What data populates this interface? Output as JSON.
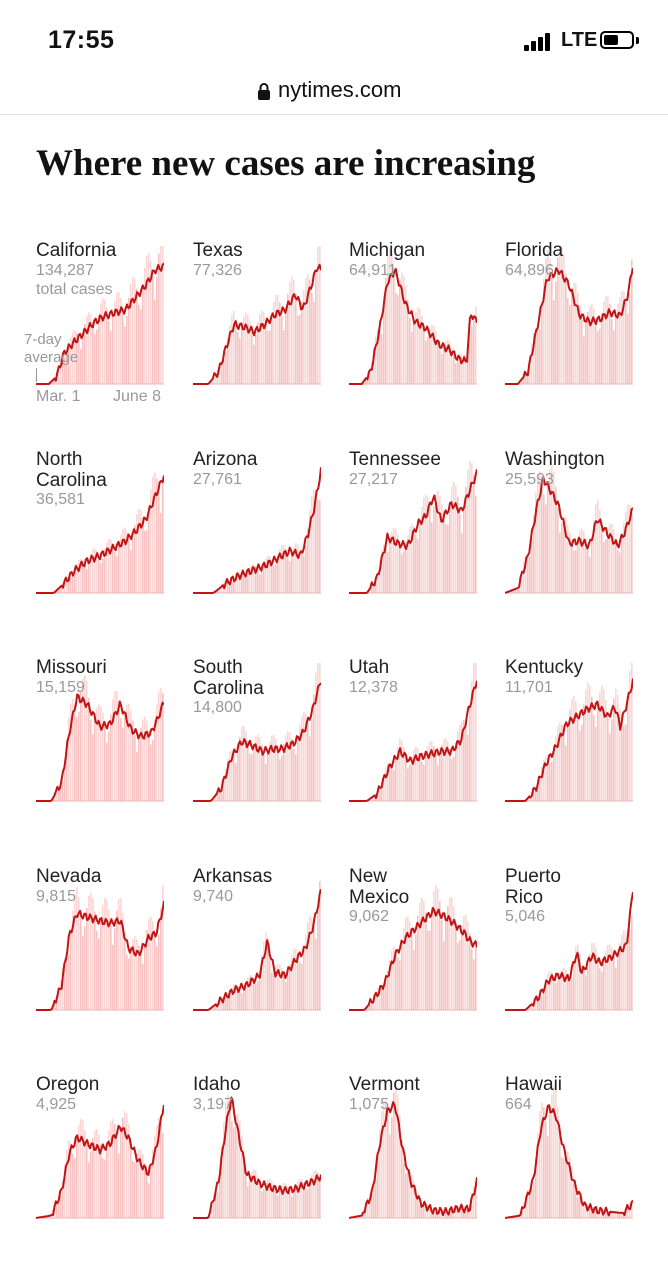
{
  "status_bar": {
    "time": "17:55",
    "network": "LTE"
  },
  "browser": {
    "url": "nytimes.com"
  },
  "headline": "Where new cases are increasing",
  "legend": {
    "total_label": "total cases",
    "avg_label_line1": "7-day",
    "avg_label_line2": "average",
    "date_start": "Mar. 1",
    "date_end": "June 8"
  },
  "colors": {
    "line": "#c21414",
    "bars": "#f8c2c2",
    "bar_spikes": "#fbd7d7"
  },
  "chart_data": {
    "type": "area",
    "title": "Where new cases are increasing",
    "x_range": [
      "Mar. 1",
      "June 8"
    ],
    "series_description": "daily new cases (bars) with 7-day average (line), each state scaled to its own peak",
    "states": [
      {
        "name": "California",
        "cases": "134,287",
        "trend": [
          [
            0,
            0.0
          ],
          [
            0.1,
            0.0
          ],
          [
            0.16,
            0.06
          ],
          [
            0.22,
            0.25
          ],
          [
            0.28,
            0.32
          ],
          [
            0.36,
            0.4
          ],
          [
            0.46,
            0.5
          ],
          [
            0.52,
            0.54
          ],
          [
            0.6,
            0.57
          ],
          [
            0.7,
            0.6
          ],
          [
            0.78,
            0.7
          ],
          [
            0.86,
            0.8
          ],
          [
            0.93,
            0.92
          ],
          [
            1,
            0.95
          ]
        ]
      },
      {
        "name": "Texas",
        "cases": "77,326",
        "trend": [
          [
            0,
            0.0
          ],
          [
            0.12,
            0.0
          ],
          [
            0.2,
            0.1
          ],
          [
            0.26,
            0.3
          ],
          [
            0.32,
            0.48
          ],
          [
            0.4,
            0.46
          ],
          [
            0.48,
            0.42
          ],
          [
            0.56,
            0.48
          ],
          [
            0.64,
            0.56
          ],
          [
            0.72,
            0.6
          ],
          [
            0.8,
            0.72
          ],
          [
            0.86,
            0.6
          ],
          [
            0.92,
            0.78
          ],
          [
            0.97,
            0.95
          ],
          [
            1,
            0.92
          ]
        ]
      },
      {
        "name": "Michigan",
        "cases": "64,911",
        "trend": [
          [
            0,
            0.0
          ],
          [
            0.1,
            0.0
          ],
          [
            0.17,
            0.1
          ],
          [
            0.24,
            0.45
          ],
          [
            0.3,
            0.82
          ],
          [
            0.36,
            0.92
          ],
          [
            0.44,
            0.65
          ],
          [
            0.52,
            0.5
          ],
          [
            0.6,
            0.45
          ],
          [
            0.7,
            0.32
          ],
          [
            0.78,
            0.28
          ],
          [
            0.86,
            0.2
          ],
          [
            0.92,
            0.18
          ],
          [
            0.95,
            0.58
          ],
          [
            0.98,
            0.52
          ]
        ]
      },
      {
        "name": "Florida",
        "cases": "64,896",
        "trend": [
          [
            0,
            0.0
          ],
          [
            0.1,
            0.0
          ],
          [
            0.18,
            0.1
          ],
          [
            0.26,
            0.5
          ],
          [
            0.33,
            0.85
          ],
          [
            0.42,
            0.92
          ],
          [
            0.5,
            0.8
          ],
          [
            0.58,
            0.56
          ],
          [
            0.66,
            0.5
          ],
          [
            0.74,
            0.52
          ],
          [
            0.82,
            0.58
          ],
          [
            0.9,
            0.55
          ],
          [
            0.96,
            0.72
          ],
          [
            1,
            0.96
          ]
        ]
      },
      {
        "name": "North Carolina",
        "cases": "36,581",
        "trend": [
          [
            0,
            0.0
          ],
          [
            0.14,
            0.0
          ],
          [
            0.22,
            0.08
          ],
          [
            0.3,
            0.18
          ],
          [
            0.4,
            0.26
          ],
          [
            0.5,
            0.3
          ],
          [
            0.6,
            0.36
          ],
          [
            0.7,
            0.42
          ],
          [
            0.78,
            0.5
          ],
          [
            0.86,
            0.6
          ],
          [
            0.92,
            0.75
          ],
          [
            1,
            0.95
          ]
        ]
      },
      {
        "name": "Arizona",
        "cases": "27,761",
        "trend": [
          [
            0,
            0.0
          ],
          [
            0.16,
            0.0
          ],
          [
            0.26,
            0.08
          ],
          [
            0.36,
            0.14
          ],
          [
            0.46,
            0.18
          ],
          [
            0.56,
            0.22
          ],
          [
            0.66,
            0.28
          ],
          [
            0.76,
            0.34
          ],
          [
            0.84,
            0.3
          ],
          [
            0.9,
            0.48
          ],
          [
            0.95,
            0.7
          ],
          [
            1,
            0.99
          ]
        ]
      },
      {
        "name": "Tennessee",
        "cases": "27,217",
        "trend": [
          [
            0,
            0.0
          ],
          [
            0.14,
            0.0
          ],
          [
            0.22,
            0.12
          ],
          [
            0.3,
            0.45
          ],
          [
            0.38,
            0.4
          ],
          [
            0.46,
            0.38
          ],
          [
            0.54,
            0.56
          ],
          [
            0.6,
            0.62
          ],
          [
            0.66,
            0.78
          ],
          [
            0.72,
            0.58
          ],
          [
            0.8,
            0.72
          ],
          [
            0.88,
            0.66
          ],
          [
            0.94,
            0.82
          ],
          [
            1,
            0.97
          ]
        ]
      },
      {
        "name": "Washington",
        "cases": "25,593",
        "trend": [
          [
            0,
            0.0
          ],
          [
            0.1,
            0.04
          ],
          [
            0.18,
            0.3
          ],
          [
            0.25,
            0.7
          ],
          [
            0.3,
            0.92
          ],
          [
            0.36,
            0.82
          ],
          [
            0.42,
            0.7
          ],
          [
            0.5,
            0.4
          ],
          [
            0.58,
            0.42
          ],
          [
            0.66,
            0.38
          ],
          [
            0.72,
            0.6
          ],
          [
            0.8,
            0.48
          ],
          [
            0.88,
            0.38
          ],
          [
            0.94,
            0.5
          ],
          [
            1,
            0.68
          ]
        ]
      },
      {
        "name": "Missouri",
        "cases": "15,159",
        "trend": [
          [
            0,
            0.0
          ],
          [
            0.12,
            0.0
          ],
          [
            0.2,
            0.15
          ],
          [
            0.26,
            0.55
          ],
          [
            0.32,
            0.84
          ],
          [
            0.4,
            0.78
          ],
          [
            0.5,
            0.6
          ],
          [
            0.58,
            0.62
          ],
          [
            0.66,
            0.78
          ],
          [
            0.74,
            0.58
          ],
          [
            0.82,
            0.52
          ],
          [
            0.9,
            0.55
          ],
          [
            0.95,
            0.66
          ],
          [
            1,
            0.8
          ]
        ]
      },
      {
        "name": "South Carolina",
        "cases": "14,800",
        "trend": [
          [
            0,
            0.0
          ],
          [
            0.14,
            0.0
          ],
          [
            0.22,
            0.1
          ],
          [
            0.3,
            0.35
          ],
          [
            0.38,
            0.48
          ],
          [
            0.46,
            0.45
          ],
          [
            0.54,
            0.4
          ],
          [
            0.62,
            0.42
          ],
          [
            0.7,
            0.42
          ],
          [
            0.78,
            0.46
          ],
          [
            0.86,
            0.55
          ],
          [
            0.93,
            0.72
          ],
          [
            1,
            0.98
          ]
        ]
      },
      {
        "name": "Utah",
        "cases": "12,378",
        "trend": [
          [
            0,
            0.0
          ],
          [
            0.14,
            0.0
          ],
          [
            0.22,
            0.06
          ],
          [
            0.32,
            0.28
          ],
          [
            0.4,
            0.4
          ],
          [
            0.48,
            0.32
          ],
          [
            0.56,
            0.36
          ],
          [
            0.64,
            0.38
          ],
          [
            0.72,
            0.4
          ],
          [
            0.8,
            0.4
          ],
          [
            0.88,
            0.5
          ],
          [
            0.93,
            0.72
          ],
          [
            1,
            0.98
          ]
        ]
      },
      {
        "name": "Kentucky",
        "cases": "11,701",
        "trend": [
          [
            0,
            0.0
          ],
          [
            0.16,
            0.0
          ],
          [
            0.24,
            0.1
          ],
          [
            0.32,
            0.3
          ],
          [
            0.4,
            0.44
          ],
          [
            0.48,
            0.62
          ],
          [
            0.56,
            0.68
          ],
          [
            0.64,
            0.74
          ],
          [
            0.72,
            0.78
          ],
          [
            0.8,
            0.68
          ],
          [
            0.86,
            0.76
          ],
          [
            0.9,
            0.6
          ],
          [
            0.95,
            0.78
          ],
          [
            1,
            0.97
          ]
        ]
      },
      {
        "name": "Nevada",
        "cases": "9,815",
        "trend": [
          [
            0,
            0.0
          ],
          [
            0.12,
            0.0
          ],
          [
            0.2,
            0.2
          ],
          [
            0.26,
            0.6
          ],
          [
            0.32,
            0.78
          ],
          [
            0.4,
            0.75
          ],
          [
            0.5,
            0.72
          ],
          [
            0.58,
            0.7
          ],
          [
            0.66,
            0.72
          ],
          [
            0.72,
            0.5
          ],
          [
            0.8,
            0.45
          ],
          [
            0.88,
            0.58
          ],
          [
            0.94,
            0.62
          ],
          [
            1,
            0.85
          ]
        ]
      },
      {
        "name": "Arkansas",
        "cases": "9,740",
        "trend": [
          [
            0,
            0.0
          ],
          [
            0.12,
            0.0
          ],
          [
            0.22,
            0.08
          ],
          [
            0.32,
            0.16
          ],
          [
            0.42,
            0.2
          ],
          [
            0.52,
            0.28
          ],
          [
            0.58,
            0.55
          ],
          [
            0.64,
            0.3
          ],
          [
            0.72,
            0.28
          ],
          [
            0.8,
            0.4
          ],
          [
            0.88,
            0.5
          ],
          [
            0.94,
            0.68
          ],
          [
            1,
            0.96
          ]
        ]
      },
      {
        "name": "New Mexico",
        "cases": "9,062",
        "trend": [
          [
            0,
            0.0
          ],
          [
            0.12,
            0.0
          ],
          [
            0.2,
            0.1
          ],
          [
            0.28,
            0.22
          ],
          [
            0.36,
            0.44
          ],
          [
            0.44,
            0.58
          ],
          [
            0.52,
            0.66
          ],
          [
            0.6,
            0.74
          ],
          [
            0.66,
            0.8
          ],
          [
            0.74,
            0.76
          ],
          [
            0.82,
            0.7
          ],
          [
            0.9,
            0.62
          ],
          [
            0.95,
            0.55
          ],
          [
            1,
            0.52
          ]
        ]
      },
      {
        "name": "Puerto Rico",
        "cases": "5,046",
        "trend": [
          [
            0,
            0.0
          ],
          [
            0.16,
            0.0
          ],
          [
            0.26,
            0.1
          ],
          [
            0.34,
            0.24
          ],
          [
            0.42,
            0.28
          ],
          [
            0.5,
            0.25
          ],
          [
            0.56,
            0.46
          ],
          [
            0.6,
            0.3
          ],
          [
            0.68,
            0.44
          ],
          [
            0.74,
            0.38
          ],
          [
            0.82,
            0.42
          ],
          [
            0.9,
            0.48
          ],
          [
            0.95,
            0.52
          ],
          [
            1,
            0.98
          ]
        ]
      },
      {
        "name": "Oregon",
        "cases": "4,925",
        "trend": [
          [
            0,
            0.0
          ],
          [
            0.12,
            0.02
          ],
          [
            0.2,
            0.22
          ],
          [
            0.26,
            0.52
          ],
          [
            0.32,
            0.65
          ],
          [
            0.4,
            0.6
          ],
          [
            0.5,
            0.55
          ],
          [
            0.58,
            0.6
          ],
          [
            0.66,
            0.74
          ],
          [
            0.72,
            0.65
          ],
          [
            0.8,
            0.46
          ],
          [
            0.88,
            0.36
          ],
          [
            0.94,
            0.56
          ],
          [
            1,
            0.93
          ]
        ]
      },
      {
        "name": "Idaho",
        "cases": "3,197",
        "trend": [
          [
            0,
            0.0
          ],
          [
            0.12,
            0.0
          ],
          [
            0.2,
            0.3
          ],
          [
            0.26,
            0.75
          ],
          [
            0.3,
            0.97
          ],
          [
            0.36,
            0.65
          ],
          [
            0.42,
            0.35
          ],
          [
            0.52,
            0.28
          ],
          [
            0.62,
            0.24
          ],
          [
            0.72,
            0.22
          ],
          [
            0.82,
            0.24
          ],
          [
            0.9,
            0.28
          ],
          [
            0.95,
            0.3
          ],
          [
            1,
            0.34
          ]
        ]
      },
      {
        "name": "Vermont",
        "cases": "1,075",
        "trend": [
          [
            0,
            0.0
          ],
          [
            0.1,
            0.02
          ],
          [
            0.18,
            0.2
          ],
          [
            0.24,
            0.6
          ],
          [
            0.3,
            0.86
          ],
          [
            0.36,
            0.92
          ],
          [
            0.42,
            0.55
          ],
          [
            0.48,
            0.3
          ],
          [
            0.56,
            0.12
          ],
          [
            0.66,
            0.06
          ],
          [
            0.76,
            0.05
          ],
          [
            0.86,
            0.08
          ],
          [
            0.94,
            0.07
          ],
          [
            1,
            0.3
          ]
        ]
      },
      {
        "name": "Hawaii",
        "cases": "664",
        "trend": [
          [
            0,
            0.0
          ],
          [
            0.12,
            0.02
          ],
          [
            0.22,
            0.3
          ],
          [
            0.28,
            0.72
          ],
          [
            0.34,
            0.9
          ],
          [
            0.4,
            0.82
          ],
          [
            0.46,
            0.55
          ],
          [
            0.54,
            0.28
          ],
          [
            0.62,
            0.1
          ],
          [
            0.72,
            0.06
          ],
          [
            0.82,
            0.05
          ],
          [
            0.92,
            0.04
          ],
          [
            1,
            0.12
          ]
        ]
      }
    ]
  }
}
